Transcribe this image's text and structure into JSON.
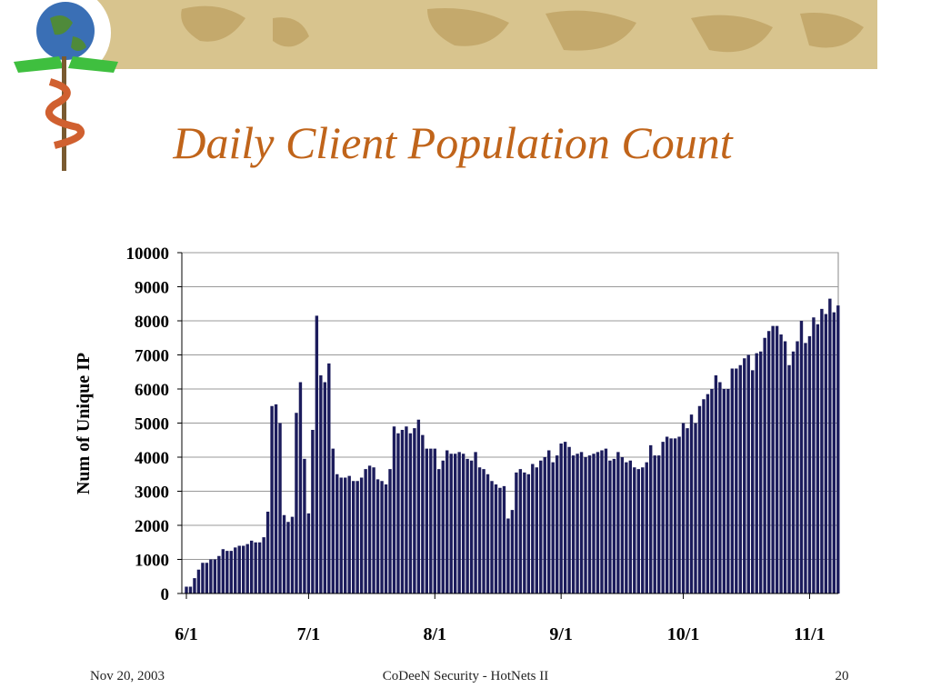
{
  "slide": {
    "title": "Daily Client Population Count",
    "footer_left": "Nov 20, 2003",
    "footer_center": "CoDeeN Security - HotNets II",
    "footer_right": "20"
  },
  "chart_data": {
    "type": "bar",
    "y_label": "Num of Unique IP",
    "color": "#1c1c5c",
    "grid": true,
    "ylim": [
      0,
      10000
    ],
    "yticks": [
      0,
      1000,
      2000,
      3000,
      4000,
      5000,
      6000,
      7000,
      8000,
      9000,
      10000
    ],
    "categories": [
      "6/1",
      null,
      null,
      null,
      null,
      null,
      null,
      null,
      null,
      null,
      null,
      null,
      null,
      null,
      null,
      null,
      null,
      null,
      null,
      null,
      null,
      null,
      null,
      null,
      null,
      null,
      null,
      null,
      null,
      null,
      "7/1",
      null,
      null,
      null,
      null,
      null,
      null,
      null,
      null,
      null,
      null,
      null,
      null,
      null,
      null,
      null,
      null,
      null,
      null,
      null,
      null,
      null,
      null,
      null,
      null,
      null,
      null,
      null,
      null,
      null,
      null,
      "8/1",
      null,
      null,
      null,
      null,
      null,
      null,
      null,
      null,
      null,
      null,
      null,
      null,
      null,
      null,
      null,
      null,
      null,
      null,
      null,
      null,
      null,
      null,
      null,
      null,
      null,
      null,
      null,
      null,
      null,
      null,
      "9/1",
      null,
      null,
      null,
      null,
      null,
      null,
      null,
      null,
      null,
      null,
      null,
      null,
      null,
      null,
      null,
      null,
      null,
      null,
      null,
      null,
      null,
      null,
      null,
      null,
      null,
      null,
      null,
      null,
      null,
      "10/1",
      null,
      null,
      null,
      null,
      null,
      null,
      null,
      null,
      null,
      null,
      null,
      null,
      null,
      null,
      null,
      null,
      null,
      null,
      null,
      null,
      null,
      null,
      null,
      null,
      null,
      null,
      null,
      null,
      null,
      null,
      "11/1",
      null,
      null,
      null,
      null,
      null,
      null,
      null
    ],
    "values": [
      200,
      200,
      450,
      700,
      900,
      900,
      1000,
      1000,
      1100,
      1300,
      1250,
      1250,
      1350,
      1400,
      1400,
      1450,
      1550,
      1500,
      1500,
      1650,
      2400,
      5500,
      5550,
      5000,
      2300,
      2100,
      2250,
      5300,
      6200,
      3950,
      2350,
      4800,
      8150,
      6400,
      6200,
      6750,
      4250,
      3500,
      3400,
      3400,
      3450,
      3300,
      3300,
      3400,
      3650,
      3750,
      3700,
      3350,
      3300,
      3200,
      3650,
      4900,
      4700,
      4800,
      4900,
      4700,
      4850,
      5100,
      4650,
      4250,
      4250,
      4250,
      3650,
      3900,
      4200,
      4100,
      4100,
      4150,
      4100,
      3950,
      3900,
      4150,
      3700,
      3650,
      3500,
      3300,
      3200,
      3100,
      3150,
      2200,
      2450,
      3550,
      3650,
      3550,
      3500,
      3800,
      3700,
      3900,
      4000,
      4200,
      3850,
      4050,
      4400,
      4450,
      4300,
      4050,
      4100,
      4150,
      4000,
      4050,
      4100,
      4150,
      4200,
      4250,
      3900,
      3950,
      4150,
      4000,
      3850,
      3900,
      3700,
      3650,
      3700,
      3850,
      4350,
      4050,
      4050,
      4450,
      4600,
      4550,
      4550,
      4600,
      5000,
      4850,
      5250,
      5000,
      5500,
      5700,
      5850,
      6000,
      6400,
      6200,
      6000,
      6000,
      6600,
      6600,
      6700,
      6900,
      7000,
      6550,
      7050,
      7100,
      7500,
      7700,
      7850,
      7850,
      7600,
      7400,
      6700,
      7100,
      7400,
      8000,
      7350,
      7550,
      8100,
      7900,
      8350,
      8200,
      8650,
      8250,
      8450
    ]
  }
}
